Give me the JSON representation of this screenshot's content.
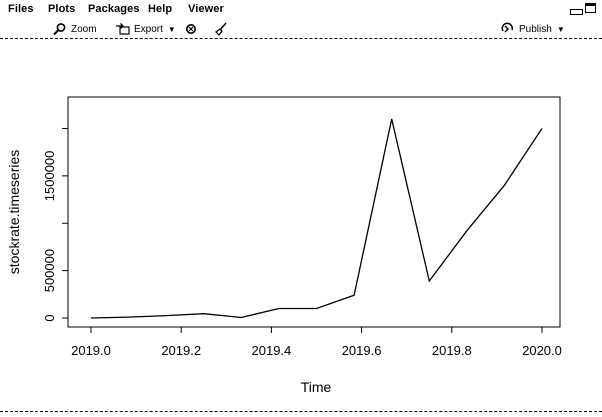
{
  "tabs": {
    "files": "Files",
    "plots": "Plots",
    "packages": "Packages",
    "help": "Help",
    "viewer": "Viewer"
  },
  "toolbar": {
    "zoom_label": "Zoom",
    "export_label": "Export",
    "publish_label": "Publish"
  },
  "icons": {
    "zoom": "magnifier-icon",
    "export": "export-icon",
    "remove": "remove-plot-icon",
    "clear": "broom-icon",
    "publish": "publish-icon",
    "minimize": "minimize-icon",
    "maximize": "maximize-icon"
  },
  "chart_data": {
    "type": "line",
    "title": "",
    "xlabel": "Time",
    "ylabel": "stockrate.timeseries",
    "x": [
      2019.0,
      2019.0833,
      2019.1667,
      2019.25,
      2019.3333,
      2019.4167,
      2019.5,
      2019.5833,
      2019.6667,
      2019.75,
      2019.8333,
      2019.9167,
      2020.0
    ],
    "values": [
      0,
      10000,
      25000,
      45000,
      5000,
      100000,
      100000,
      240000,
      2100000,
      390000,
      920000,
      1400000,
      2000000
    ],
    "xlim": [
      2019.0,
      2020.0
    ],
    "ylim": [
      0,
      2100000
    ],
    "xticks": [
      "2019.0",
      "2019.2",
      "2019.4",
      "2019.6",
      "2019.8",
      "2020.0"
    ],
    "xtick_values": [
      2019.0,
      2019.2,
      2019.4,
      2019.6,
      2019.8,
      2020.0
    ],
    "yticks": [
      "0",
      "500000",
      "1500000"
    ],
    "ytick_values": [
      0,
      500000,
      1500000
    ],
    "yticks_unlabeled": [
      1000000,
      2000000
    ],
    "color": "#000000",
    "grid": false,
    "legend": "none"
  }
}
